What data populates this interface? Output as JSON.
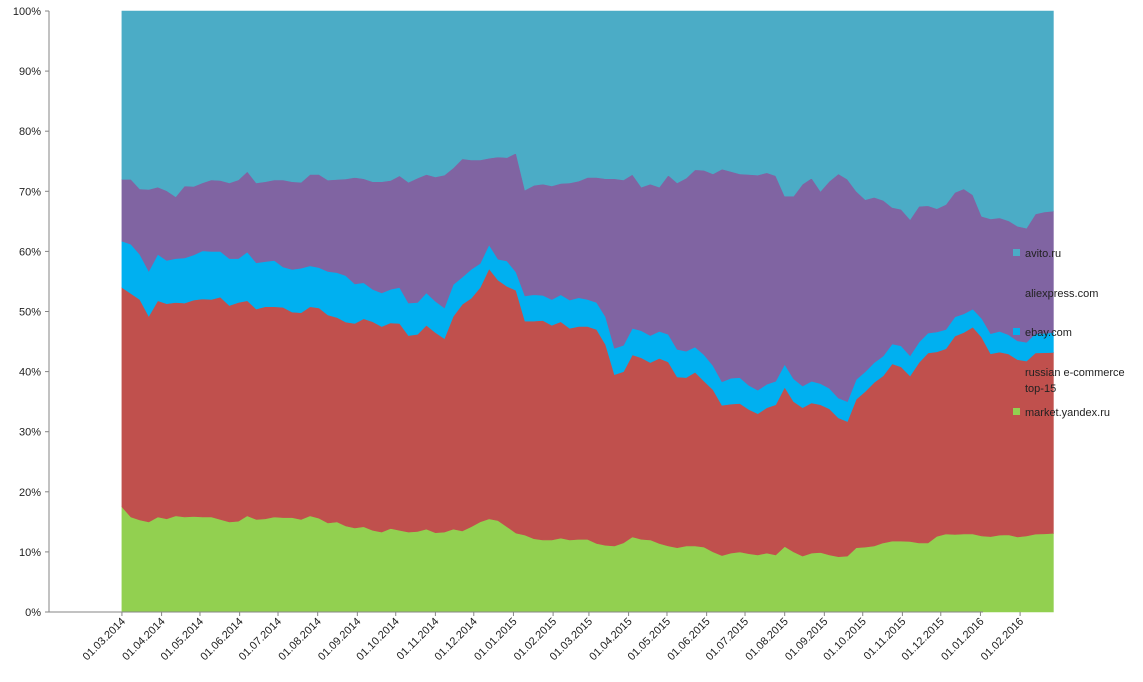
{
  "chart_data": {
    "type": "area",
    "stacked": true,
    "percent": true,
    "title": "",
    "xlabel": "",
    "ylabel": "",
    "ylim": [
      0,
      100
    ],
    "yticks": [
      "0%",
      "10%",
      "20%",
      "30%",
      "40%",
      "50%",
      "60%",
      "70%",
      "80%",
      "90%",
      "100%"
    ],
    "x_start": "01.03.2014",
    "x_end": "01.03.2016",
    "xticks": [
      {
        "label": "01.03.2014",
        "date": "2014-03-01"
      },
      {
        "label": "01.04.2014",
        "date": "2014-04-01"
      },
      {
        "label": "01.05.2014",
        "date": "2014-05-01"
      },
      {
        "label": "01.06.2014",
        "date": "2014-06-01"
      },
      {
        "label": "01.07.2014",
        "date": "2014-07-01"
      },
      {
        "label": "01.08.2014",
        "date": "2014-08-01"
      },
      {
        "label": "01.09.2014",
        "date": "2014-09-01"
      },
      {
        "label": "01.10.2014",
        "date": "2014-10-01"
      },
      {
        "label": "01.11.2014",
        "date": "2014-11-01"
      },
      {
        "label": "01.12.2014",
        "date": "2014-12-01"
      },
      {
        "label": "01.01.2015",
        "date": "2015-01-01"
      },
      {
        "label": "01.02.2015",
        "date": "2015-02-01"
      },
      {
        "label": "01.03.2015",
        "date": "2015-03-01"
      },
      {
        "label": "01.04.2015",
        "date": "2015-04-01"
      },
      {
        "label": "01.05.2015",
        "date": "2015-05-01"
      },
      {
        "label": "01.06.2015",
        "date": "2015-06-01"
      },
      {
        "label": "01.07.2015",
        "date": "2015-07-01"
      },
      {
        "label": "01.08.2015",
        "date": "2015-08-01"
      },
      {
        "label": "01.09.2015",
        "date": "2015-09-01"
      },
      {
        "label": "01.10.2015",
        "date": "2015-10-01"
      },
      {
        "label": "01.11.2015",
        "date": "2015-11-01"
      },
      {
        "label": "01.12.2015",
        "date": "2015-12-01"
      },
      {
        "label": "01.01.2016",
        "date": "2016-01-01"
      },
      {
        "label": "01.02.2016",
        "date": "2016-02-01"
      }
    ],
    "dates": [
      "2014-03-01",
      "2014-03-08",
      "2014-03-15",
      "2014-03-22",
      "2014-03-29",
      "2014-04-05",
      "2014-04-12",
      "2014-04-19",
      "2014-04-26",
      "2014-05-03",
      "2014-05-10",
      "2014-05-17",
      "2014-05-24",
      "2014-05-31",
      "2014-06-07",
      "2014-06-14",
      "2014-06-21",
      "2014-06-28",
      "2014-07-05",
      "2014-07-12",
      "2014-07-19",
      "2014-07-26",
      "2014-08-02",
      "2014-08-09",
      "2014-08-16",
      "2014-08-23",
      "2014-08-30",
      "2014-09-06",
      "2014-09-13",
      "2014-09-20",
      "2014-09-27",
      "2014-10-04",
      "2014-10-11",
      "2014-10-18",
      "2014-10-25",
      "2014-11-01",
      "2014-11-08",
      "2014-11-15",
      "2014-11-22",
      "2014-11-29",
      "2014-12-06",
      "2014-12-13",
      "2014-12-20",
      "2014-12-27",
      "2015-01-03",
      "2015-01-10",
      "2015-01-17",
      "2015-01-24",
      "2015-01-31",
      "2015-02-07",
      "2015-02-14",
      "2015-02-21",
      "2015-02-28",
      "2015-03-07",
      "2015-03-14",
      "2015-03-21",
      "2015-03-28",
      "2015-04-04",
      "2015-04-11",
      "2015-04-18",
      "2015-04-25",
      "2015-05-02",
      "2015-05-09",
      "2015-05-16",
      "2015-05-23",
      "2015-05-30",
      "2015-06-06",
      "2015-06-13",
      "2015-06-20",
      "2015-06-27",
      "2015-07-04",
      "2015-07-11",
      "2015-07-18",
      "2015-07-25",
      "2015-08-01",
      "2015-08-08",
      "2015-08-15",
      "2015-08-22",
      "2015-08-29",
      "2015-09-05",
      "2015-09-12",
      "2015-09-19",
      "2015-09-26",
      "2015-10-03",
      "2015-10-10",
      "2015-10-17",
      "2015-10-24",
      "2015-10-31",
      "2015-11-07",
      "2015-11-14",
      "2015-11-21",
      "2015-11-28",
      "2015-12-05",
      "2015-12-12",
      "2015-12-19",
      "2015-12-26",
      "2016-01-02",
      "2016-01-09",
      "2016-01-16",
      "2016-01-23",
      "2016-01-30",
      "2016-02-06",
      "2016-02-13",
      "2016-02-20",
      "2016-02-27"
    ],
    "series": [
      {
        "name": "market.yandex.ru",
        "color": "#92d050",
        "values": [
          17.5,
          15.8,
          15.3,
          15.0,
          15.8,
          15.5,
          16.0,
          15.8,
          15.9,
          15.8,
          15.8,
          15.4,
          15.0,
          15.1,
          16.0,
          15.4,
          15.5,
          15.8,
          15.7,
          15.7,
          15.4,
          16.0,
          15.6,
          15.1,
          15.3,
          14.6,
          14.0,
          14.2,
          13.6,
          13.3,
          13.9,
          13.6,
          13.3,
          13.4,
          13.8,
          13.2,
          13.3,
          13.8,
          13.5,
          14.2,
          15.0,
          15.5,
          15.2,
          14.2,
          13.0,
          12.8,
          12.2,
          12.0,
          12.0,
          12.3,
          12.0,
          12.1,
          12.1,
          11.4,
          11.1,
          11.0,
          11.5,
          12.5,
          12.1,
          12.0,
          11.4,
          11.0,
          10.7,
          11.0,
          11.0,
          10.8,
          10.0,
          9.4,
          9.8,
          10.0,
          9.7,
          9.5,
          9.8,
          9.5,
          10.9,
          10.0,
          9.3,
          9.8,
          9.9,
          9.5,
          9.2,
          9.3,
          10.7,
          10.8,
          11.0,
          11.5,
          11.8,
          11.8,
          11.5,
          11.5,
          11.5,
          12.6,
          13.0,
          12.9,
          13.0,
          13.0,
          12.6,
          12.3,
          12.6,
          12.8,
          12.5,
          12.6,
          12.9,
          13.0,
          13.1
        ]
      },
      {
        "name": "russian e-commerce top-15",
        "color": "#c0504d",
        "values": [
          36.5,
          37.2,
          36.7,
          34.2,
          36.0,
          35.8,
          35.5,
          35.6,
          36.0,
          36.3,
          36.2,
          37.0,
          36.0,
          36.4,
          35.8,
          35.0,
          35.3,
          35.0,
          35.0,
          34.2,
          34.4,
          34.8,
          35.0,
          35.3,
          34.7,
          34.6,
          34.0,
          34.6,
          34.7,
          34.2,
          34.2,
          34.4,
          32.7,
          32.8,
          33.9,
          33.3,
          32.2,
          35.4,
          37.7,
          38.0,
          39.0,
          41.6,
          40.0,
          40.0,
          40.0,
          35.6,
          36.2,
          36.5,
          35.7,
          36.0,
          35.2,
          35.4,
          35.4,
          35.6,
          33.4,
          28.5,
          28.5,
          30.3,
          30.2,
          29.5,
          30.8,
          30.6,
          28.4,
          28.0,
          28.9,
          27.6,
          27.0,
          25.0,
          24.8,
          24.7,
          24.0,
          23.5,
          24.2,
          25.0,
          26.5,
          25.0,
          24.7,
          25.0,
          24.6,
          24.3,
          23.1,
          22.4,
          24.7,
          25.9,
          27.2,
          27.8,
          29.5,
          29.0,
          27.0,
          30.0,
          31.6,
          30.7,
          30.8,
          33.0,
          33.5,
          34.4,
          32.9,
          29.8,
          30.0,
          30.0,
          29.5,
          29.0,
          30.0,
          30.1,
          30.1
        ]
      },
      {
        "name": "ebay.com",
        "color": "#00b0f0",
        "values": [
          7.7,
          8.2,
          7.5,
          7.5,
          7.7,
          7.2,
          7.3,
          7.5,
          7.5,
          8.0,
          8.0,
          7.6,
          7.8,
          7.3,
          8.1,
          7.7,
          7.5,
          7.7,
          6.7,
          7.1,
          7.4,
          6.8,
          6.7,
          7.4,
          7.6,
          7.9,
          6.6,
          6.0,
          5.4,
          5.6,
          5.6,
          6.0,
          5.4,
          5.3,
          5.4,
          5.2,
          5.1,
          5.3,
          4.5,
          4.8,
          4.0,
          4.0,
          3.5,
          4.2,
          3.0,
          4.2,
          4.4,
          4.2,
          4.3,
          4.5,
          4.7,
          4.8,
          4.5,
          4.5,
          4.6,
          4.4,
          4.4,
          4.4,
          4.5,
          4.5,
          4.5,
          4.6,
          4.6,
          4.4,
          4.2,
          4.4,
          4.0,
          3.9,
          4.3,
          4.3,
          4.0,
          3.9,
          3.9,
          3.9,
          3.8,
          3.8,
          3.6,
          3.6,
          3.5,
          3.4,
          3.3,
          3.3,
          3.3,
          3.3,
          3.3,
          3.3,
          3.3,
          3.5,
          3.3,
          3.4,
          3.3,
          3.3,
          3.2,
          3.2,
          3.1,
          3.0,
          3.1,
          3.3,
          3.4,
          3.2,
          3.1,
          3.1,
          3.2,
          3.2,
          3.3
        ]
      },
      {
        "name": "aliexpress.com",
        "color": "#8064a2",
        "values": [
          10.3,
          10.8,
          10.9,
          13.6,
          11.2,
          11.6,
          10.3,
          12.0,
          11.4,
          11.3,
          11.9,
          11.8,
          12.6,
          13.1,
          13.4,
          13.3,
          13.3,
          13.4,
          14.5,
          14.6,
          14.3,
          15.2,
          15.5,
          15.5,
          15.8,
          16.4,
          17.7,
          17.3,
          17.9,
          18.5,
          18.1,
          18.6,
          20.1,
          20.7,
          19.7,
          20.7,
          22.1,
          19.4,
          19.7,
          18.2,
          17.2,
          14.4,
          17.0,
          17.2,
          19.6,
          17.6,
          18.2,
          18.5,
          18.9,
          18.5,
          19.5,
          19.4,
          20.3,
          20.8,
          23.0,
          28.2,
          27.5,
          25.6,
          23.9,
          25.2,
          24.0,
          26.5,
          27.7,
          28.8,
          29.5,
          30.7,
          31.9,
          35.4,
          34.4,
          33.9,
          35.1,
          35.8,
          35.2,
          34.2,
          28.0,
          30.4,
          33.6,
          33.8,
          32.0,
          34.5,
          37.3,
          37.0,
          31.3,
          28.6,
          27.5,
          25.9,
          22.7,
          22.7,
          22.2,
          22.6,
          21.2,
          20.5,
          20.8,
          20.7,
          20.8,
          19.0,
          16.9,
          18.7,
          18.6,
          18.9,
          19.1,
          18.9,
          19.8,
          20.2,
          20.2
        ]
      },
      {
        "name": "avito.ru",
        "color": "#4bacc6",
        "values": [
          28.0,
          28.0,
          29.6,
          29.7,
          29.3,
          29.9,
          30.9,
          29.1,
          29.2,
          28.6,
          28.1,
          28.2,
          28.6,
          28.1,
          26.7,
          28.6,
          28.4,
          28.1,
          28.1,
          28.4,
          28.5,
          27.2,
          27.2,
          28.7,
          28.6,
          28.5,
          27.7,
          27.9,
          28.4,
          28.4,
          28.2,
          27.4,
          28.5,
          27.8,
          27.2,
          27.6,
          27.3,
          26.1,
          24.6,
          24.8,
          24.8,
          24.5,
          24.3,
          24.4,
          23.4,
          29.8,
          29.0,
          28.8,
          29.1,
          28.7,
          28.6,
          28.3,
          27.7,
          27.7,
          27.9,
          27.9,
          28.1,
          27.2,
          29.3,
          28.8,
          29.3,
          27.3,
          28.6,
          27.8,
          26.4,
          26.5,
          27.1,
          26.3,
          26.7,
          27.1,
          27.2,
          27.3,
          26.9,
          27.4,
          30.8,
          30.8,
          28.8,
          27.8,
          30.0,
          28.3,
          27.1,
          28.0,
          30.0,
          31.4,
          31.0,
          31.5,
          32.7,
          33.0,
          34.0,
          32.5,
          32.4,
          32.9,
          32.2,
          30.2,
          29.6,
          30.6,
          34.0,
          33.9,
          33.9,
          34.8,
          35.8,
          36.0,
          33.6,
          33.4,
          33.3
        ]
      }
    ],
    "legend": {
      "position": "right",
      "order": [
        "avito.ru",
        "aliexpress.com",
        "ebay.com",
        "russian e-commerce top-15",
        "market.yandex.ru"
      ]
    },
    "legend_labels": {
      "avito": "avito.ru",
      "aliexpress": "aliexpress.com",
      "ebay": "ebay.com",
      "top15_line1": "russian e-commerce",
      "top15_line2": "top-15",
      "yandex": "market.yandex.ru"
    },
    "grid": false
  }
}
